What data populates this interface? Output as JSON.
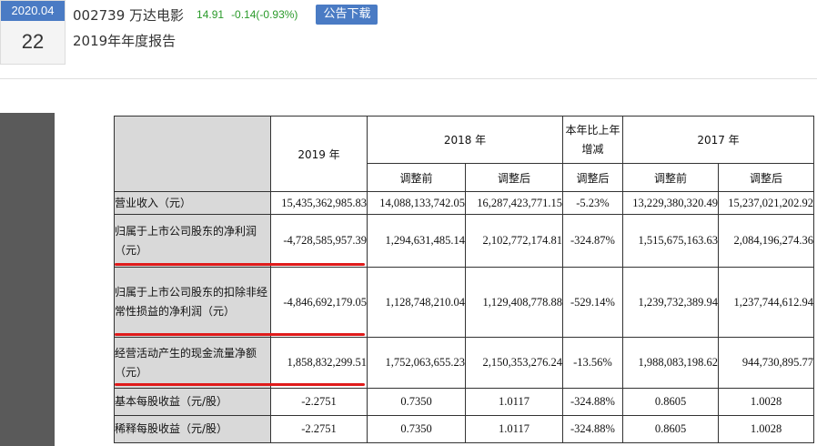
{
  "header": {
    "date_month": "2020.04",
    "date_day": "22",
    "stock_name": "002739 万达电影",
    "price": "14.91",
    "change": "-0.14(-0.93%)",
    "download_label": "公告下载",
    "report_title": "2019年年度报告",
    "change_color": "#2a9a2a",
    "accent": "#4a7bc4"
  },
  "table": {
    "col_2019": "2019 年",
    "col_2018": "2018 年",
    "col_yoy": "本年比上年增减",
    "col_2017": "2017 年",
    "sub_before": "调整前",
    "sub_after": "调整后",
    "rows": [
      {
        "label": "营业收入（元）",
        "v2019": "15,435,362,985.83",
        "v2018_before": "14,088,133,742.05",
        "v2018_after": "16,287,423,771.15",
        "yoy": "-5.23%",
        "v2017_before": "13,229,380,320.49",
        "v2017_after": "15,237,021,202.92"
      },
      {
        "label": "归属于上市公司股东的净利润（元）",
        "v2019": "-4,728,585,957.39",
        "v2018_before": "1,294,631,485.14",
        "v2018_after": "2,102,772,174.81",
        "yoy": "-324.87%",
        "v2017_before": "1,515,675,163.63",
        "v2017_after": "2,084,196,274.36"
      },
      {
        "label": "归属于上市公司股东的扣除非经常性损益的净利润（元）",
        "v2019": "-4,846,692,179.05",
        "v2018_before": "1,128,748,210.04",
        "v2018_after": "1,129,408,778.88",
        "yoy": "-529.14%",
        "v2017_before": "1,239,732,389.94",
        "v2017_after": "1,237,744,612.94"
      },
      {
        "label": "经营活动产生的现金流量净额（元）",
        "v2019": "1,858,832,299.51",
        "v2018_before": "1,752,063,655.23",
        "v2018_after": "2,150,353,276.24",
        "yoy": "-13.56%",
        "v2017_before": "1,988,083,198.62",
        "v2017_after": "944,730,895.77"
      },
      {
        "label": "基本每股收益（元/股）",
        "v2019": "-2.2751",
        "v2018_before": "0.7350",
        "v2018_after": "1.0117",
        "yoy": "-324.88%",
        "v2017_before": "0.8605",
        "v2017_after": "1.0028"
      },
      {
        "label": "稀释每股收益（元/股）",
        "v2019": "-2.2751",
        "v2018_before": "0.7350",
        "v2018_after": "1.0117",
        "yoy": "-324.88%",
        "v2017_before": "0.8605",
        "v2017_after": "1.0028"
      }
    ]
  },
  "highlight_color": "#e01b1b"
}
